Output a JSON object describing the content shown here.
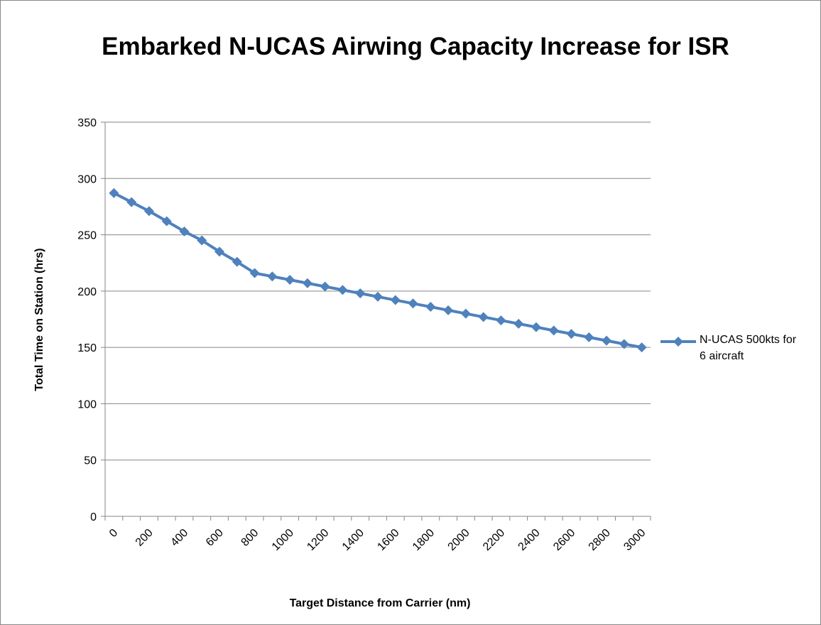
{
  "chart_data": {
    "type": "line",
    "title": "Embarked N-UCAS Airwing Capacity Increase for ISR",
    "x_label": "Target Distance from Carrier (nm)",
    "y_label": "Total Time on Station (hrs)",
    "categories": [
      "0",
      null,
      "200",
      null,
      "400",
      null,
      "600",
      null,
      "800",
      null,
      "1000",
      null,
      "1200",
      null,
      "1400",
      null,
      "1600",
      null,
      "1800",
      null,
      "2000",
      null,
      "2200",
      null,
      "2400",
      null,
      "2600",
      null,
      "2800",
      null,
      "3000"
    ],
    "series": [
      {
        "name": "N-UCAS 500kts for 6 aircraft",
        "color": "#4f81bd",
        "values": [
          287,
          279,
          271,
          262,
          253,
          245,
          235,
          226,
          216,
          213,
          210,
          207,
          204,
          201,
          198,
          195,
          192,
          189,
          186,
          183,
          180,
          177,
          174,
          171,
          168,
          165,
          162,
          159,
          156,
          153,
          150
        ]
      }
    ],
    "ylim": [
      0,
      350
    ],
    "yticks": [
      0,
      50,
      100,
      150,
      200,
      250,
      300,
      350
    ],
    "grid": true,
    "legend": "right"
  }
}
